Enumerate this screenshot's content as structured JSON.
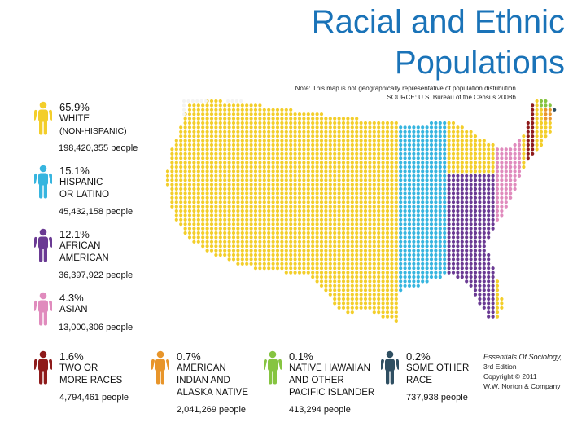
{
  "title_line1": "Racial and Ethnic",
  "title_line2": "Populations",
  "note_line1": "Note: This map is not geographically representative of population distribution.",
  "note_line2": "SOURCE: U.S. Bureau of the Census 2008b.",
  "legend": [
    {
      "percent": "65.9%",
      "label_lines": [
        "WHITE",
        "(NON-HISPANIC)"
      ],
      "people": "198,420,355 people",
      "color": "#f3ce2a",
      "icon": "person-icon"
    },
    {
      "percent": "15.1%",
      "label_lines": [
        "HISPANIC",
        "OR LATINO"
      ],
      "people": "45,432,158 people",
      "color": "#37b5df",
      "icon": "person-icon"
    },
    {
      "percent": "12.1%",
      "label_lines": [
        "AFRICAN",
        "AMERICAN"
      ],
      "people": "36,397,922 people",
      "color": "#6a3a93",
      "icon": "person-icon"
    },
    {
      "percent": "4.3%",
      "label_lines": [
        "ASIAN"
      ],
      "people": "13,000,306 people",
      "color": "#e08bbd",
      "icon": "person-icon"
    },
    {
      "percent": "1.6%",
      "label_lines": [
        "TWO OR",
        "MORE RACES"
      ],
      "people": "4,794,461 people",
      "color": "#8e1b1b",
      "icon": "person-icon"
    },
    {
      "percent": "0.7%",
      "label_lines": [
        "AMERICAN",
        "INDIAN AND",
        "ALASKA NATIVE"
      ],
      "people": "2,041,269 people",
      "color": "#e8952a",
      "icon": "person-icon"
    },
    {
      "percent": "0.1%",
      "label_lines": [
        "NATIVE HAWAIIAN",
        "AND OTHER",
        "PACIFIC ISLANDER"
      ],
      "people": "413,294 people",
      "color": "#86c441",
      "icon": "person-icon"
    },
    {
      "percent": "0.2%",
      "label_lines": [
        "SOME OTHER",
        "RACE"
      ],
      "people": "737,938 people",
      "color": "#2f4f62",
      "icon": "person-icon"
    }
  ],
  "credit": {
    "book": "Essentials Of Sociology,",
    "edition": "3rd Edition",
    "copyright": "Copyright © 2011",
    "publisher": "W.W. Norton & Company"
  },
  "map_colors": {
    "empty": "#f3f3f3",
    "white": "#f3ce2a",
    "hispanic": "#37b5df",
    "black": "#6a3a93",
    "asian": "#e08bbd",
    "two_or_more": "#8e1b1b",
    "other_race": "#2f4f62",
    "pacific": "#86c441",
    "native": "#e8952a"
  }
}
